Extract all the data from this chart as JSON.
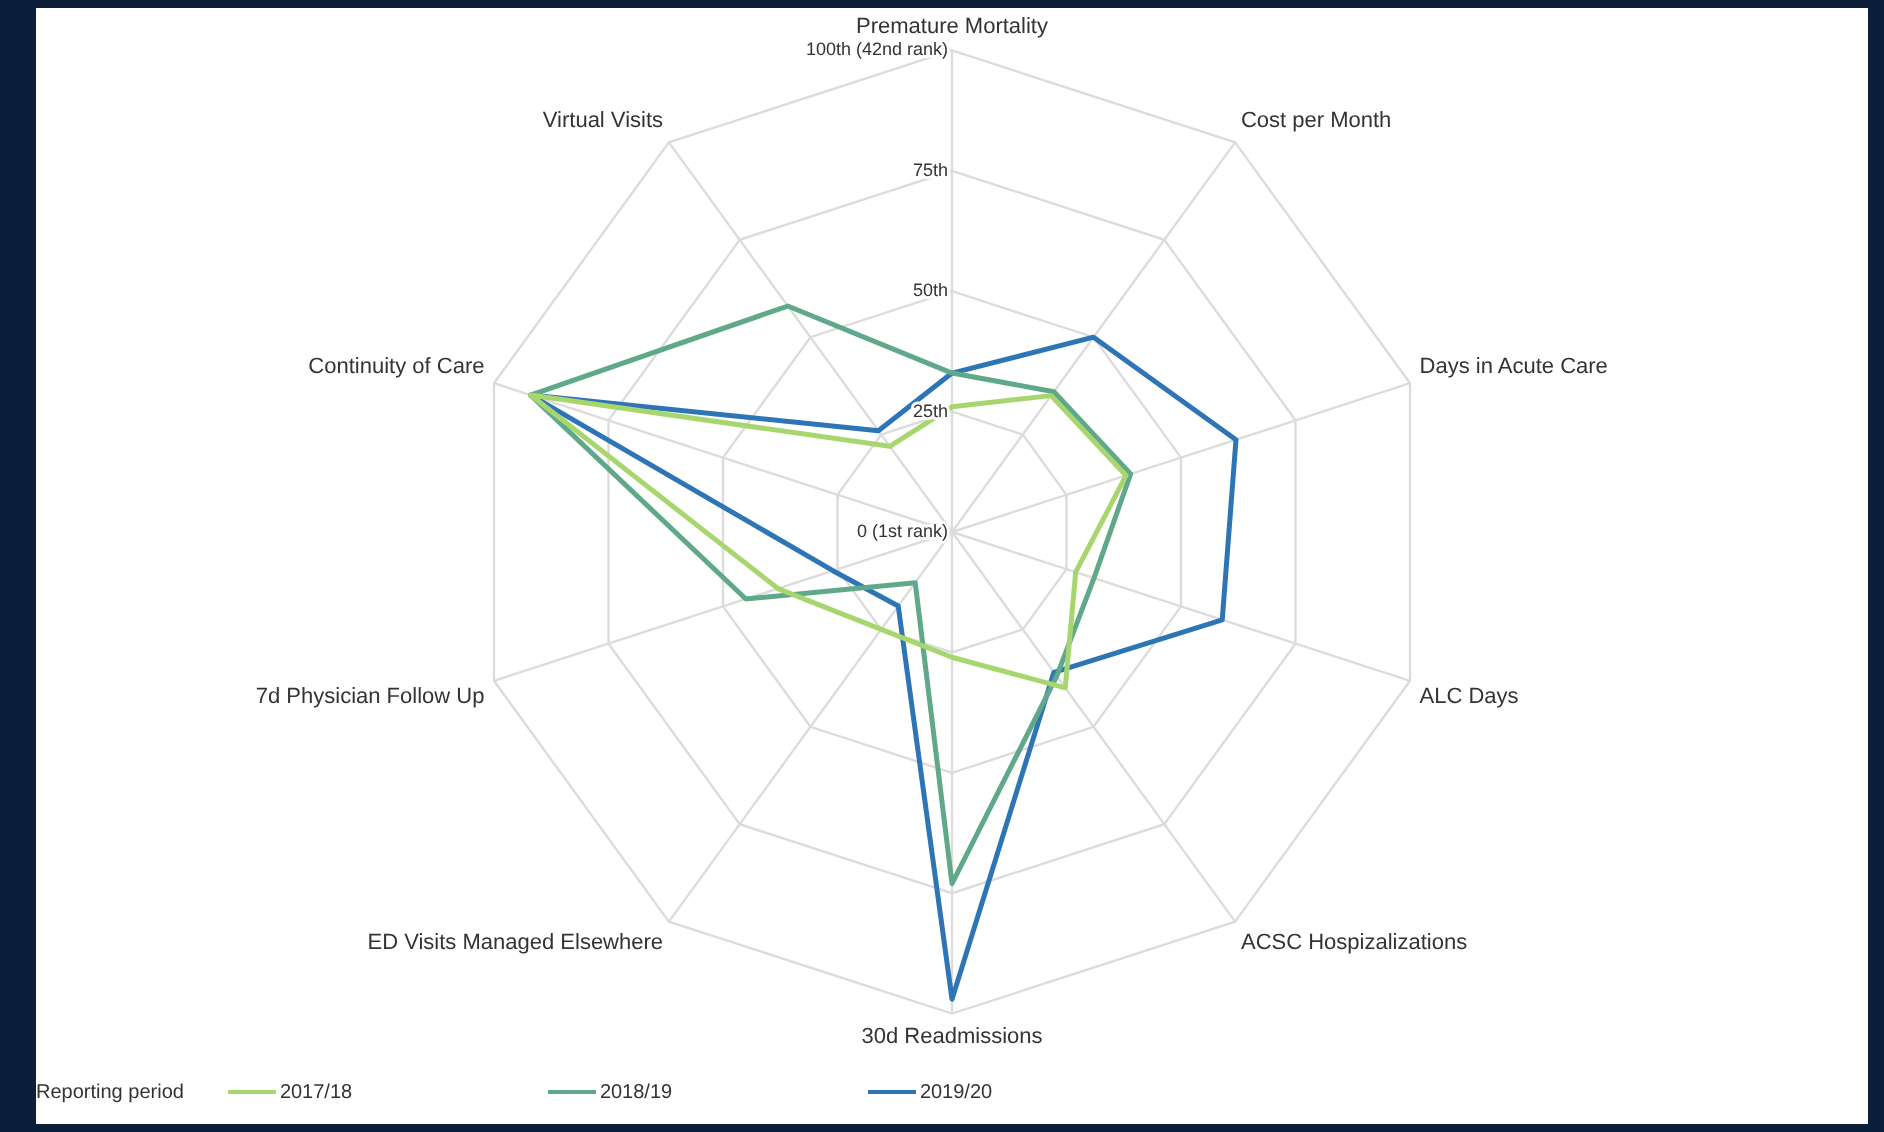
{
  "chart_data": {
    "type": "radar",
    "categories": [
      "Premature Mortality",
      "Cost per Month",
      "Days in Acute Care",
      "ALC Days",
      "ACSC Hospizalizations",
      "30d Readmissions",
      "ED Visits Managed Elsewhere",
      "7d Physician Follow Up",
      "Continuity of Care",
      "Virtual Visits"
    ],
    "series": [
      {
        "name": "2017/18",
        "color": "#a8d66e",
        "values": [
          26,
          35,
          38,
          27,
          40,
          26,
          25,
          38,
          92,
          22
        ]
      },
      {
        "name": "2018/19",
        "color": "#5fa88a",
        "values": [
          33,
          36,
          39,
          31,
          37,
          73,
          13,
          45,
          92,
          58
        ]
      },
      {
        "name": "2019/20",
        "color": "#2e75b6",
        "values": [
          33,
          50,
          62,
          59,
          36,
          97,
          19,
          26,
          92,
          26
        ]
      }
    ],
    "ylim": [
      0,
      100
    ],
    "yticks": [
      {
        "value": 0,
        "label": "0 (1st rank)"
      },
      {
        "value": 25,
        "label": "25th"
      },
      {
        "value": 50,
        "label": "50th"
      },
      {
        "value": 75,
        "label": "75th"
      },
      {
        "value": 100,
        "label": "100th (42nd rank)"
      }
    ],
    "legend": "bottom",
    "legend_title": "Reporting period",
    "marker": "none",
    "grid": true
  }
}
